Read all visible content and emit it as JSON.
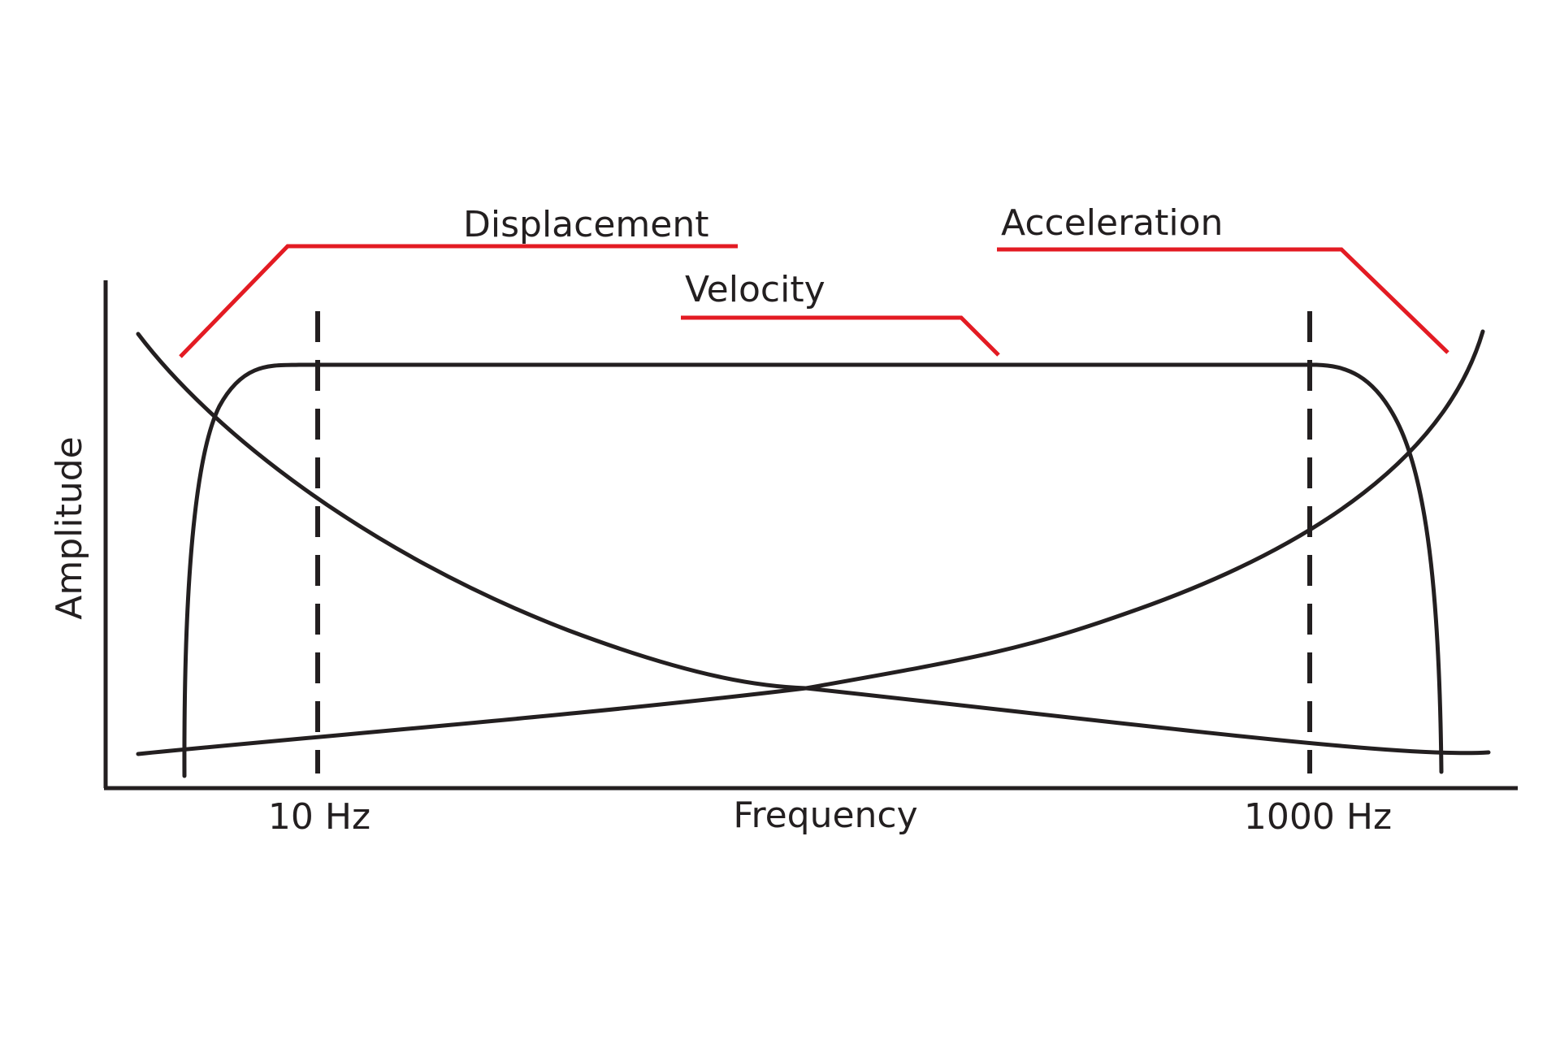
{
  "axes": {
    "y_label": "Amplitude",
    "x_label": "Frequency"
  },
  "markers": [
    {
      "label": "10 Hz"
    },
    {
      "label": "1000 Hz"
    }
  ],
  "curves": {
    "displacement": {
      "label": "Displacement"
    },
    "velocity": {
      "label": "Velocity"
    },
    "acceleration": {
      "label": "Acceleration"
    }
  },
  "colors": {
    "line": "#231f20",
    "leader": "#e31b23",
    "background": "#ffffff"
  }
}
